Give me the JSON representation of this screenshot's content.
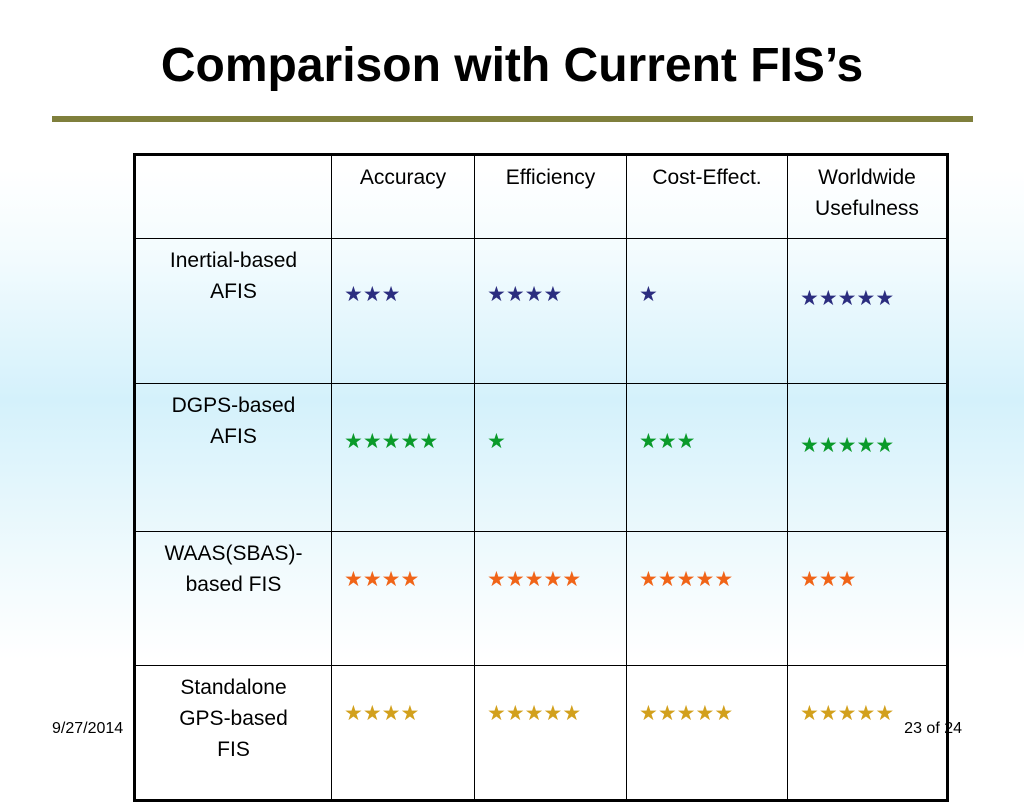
{
  "slide": {
    "title": "Comparison with Current FIS’s",
    "footer_date": "9/27/2014",
    "footer_page": "23 of 24"
  },
  "table": {
    "corner": "",
    "columns": [
      "Accuracy",
      "Efficiency",
      "Cost-Effect.",
      "Worldwide Usefulness"
    ],
    "rows": [
      {
        "label": "Inertial-based AFIS",
        "color": "#2b2d7f",
        "ratings": [
          3,
          4,
          1,
          5
        ]
      },
      {
        "label": "DGPS-based AFIS",
        "color": "#0a9a2a",
        "ratings": [
          5,
          1,
          3,
          5
        ]
      },
      {
        "label": "WAAS(SBAS)-based FIS",
        "color": "#f06418",
        "ratings": [
          4,
          5,
          5,
          3
        ]
      },
      {
        "label": "Standalone GPS-based FIS",
        "color": "#d2a01c",
        "ratings": [
          4,
          5,
          5,
          5
        ]
      }
    ]
  },
  "star_icon": "star-icon"
}
